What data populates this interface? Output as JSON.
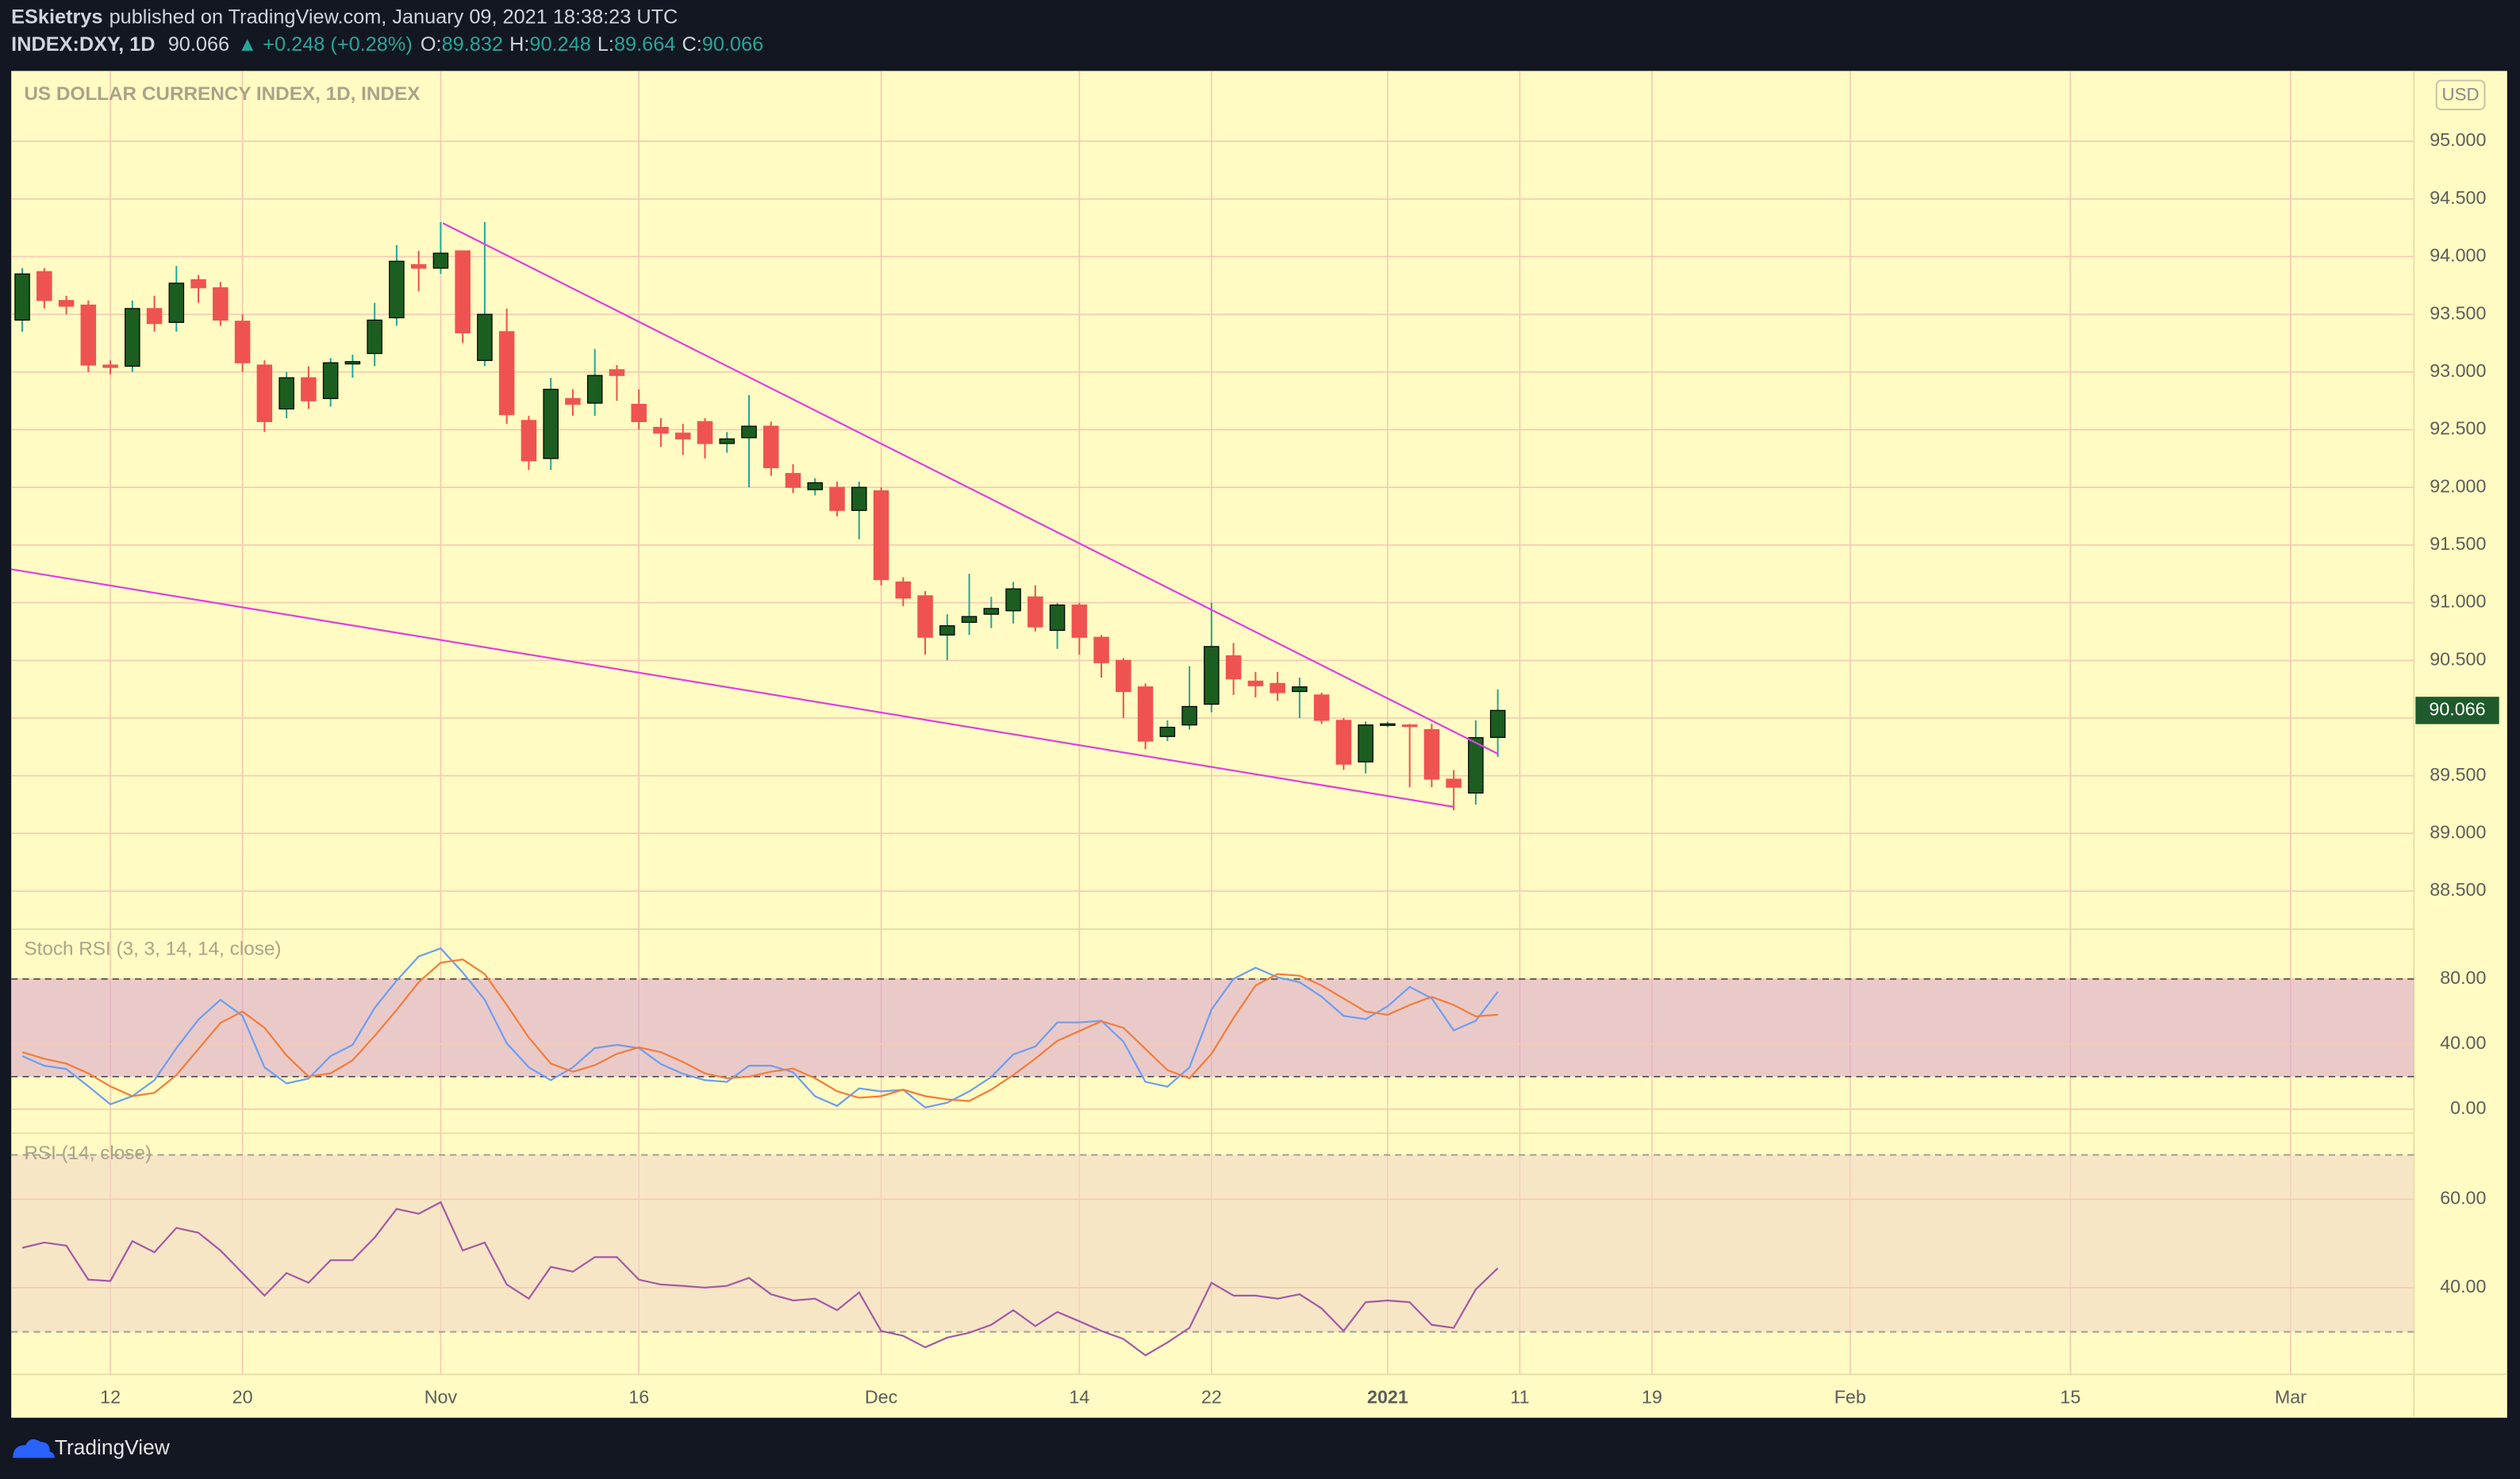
{
  "header": {
    "author": "ESkietrys",
    "published": "published on TradingView.com, January 09, 2021 18:38:23 UTC",
    "symbol": "INDEX:DXY, 1D",
    "price": "90.066",
    "change": "▲ +0.248 (+0.28%)",
    "ohlc": [
      {
        "label": "O:",
        "value": "89.832"
      },
      {
        "label": "H:",
        "value": "90.248"
      },
      {
        "label": "L:",
        "value": "89.664"
      },
      {
        "label": "C:",
        "value": "90.066"
      }
    ]
  },
  "footer": {
    "brand": "TradingView"
  },
  "chart_data": [
    {
      "type": "candlestick",
      "title": "US DOLLAR CURRENCY INDEX, 1D, INDEX",
      "currency": "USD",
      "grid": true,
      "up_color": "#1b5e20",
      "down_color": "#ef5350",
      "xlim": [
        -0.5,
        108.6
      ],
      "xticks": [
        {
          "value": 4,
          "label": "12"
        },
        {
          "value": 10,
          "label": "20"
        },
        {
          "value": 19,
          "label": "Nov"
        },
        {
          "value": 28,
          "label": "16"
        },
        {
          "value": 39,
          "label": "Dec"
        },
        {
          "value": 48,
          "label": "14"
        },
        {
          "value": 54,
          "label": "22"
        },
        {
          "value": 62,
          "label": "2021"
        },
        {
          "value": 68,
          "label": "11"
        },
        {
          "value": 74,
          "label": "19"
        },
        {
          "value": 83,
          "label": "Feb"
        },
        {
          "value": 93,
          "label": "15"
        },
        {
          "value": 103,
          "label": "Mar"
        }
      ],
      "ylim": [
        88.17,
        95.61
      ],
      "yticks": [
        {
          "value": 88.5,
          "label": "88.500"
        },
        {
          "value": 89,
          "label": "89.000"
        },
        {
          "value": 89.5,
          "label": "89.500"
        },
        {
          "value": 90,
          "label": "90.000"
        },
        {
          "value": 90.5,
          "label": "90.500"
        },
        {
          "value": 91,
          "label": "91.000"
        },
        {
          "value": 91.5,
          "label": "91.500"
        },
        {
          "value": 92,
          "label": "92.000"
        },
        {
          "value": 92.5,
          "label": "92.500"
        },
        {
          "value": 93,
          "label": "93.000"
        },
        {
          "value": 93.5,
          "label": "93.500"
        },
        {
          "value": 94,
          "label": "94.000"
        },
        {
          "value": 94.5,
          "label": "94.500"
        },
        {
          "value": 95,
          "label": "95.000"
        }
      ],
      "open": [
        93.45,
        93.87,
        93.62,
        93.58,
        93.06,
        93.05,
        93.55,
        93.43,
        93.8,
        93.73,
        93.44,
        93.06,
        92.68,
        92.95,
        92.77,
        93.07,
        93.16,
        93.47,
        93.93,
        93.9,
        94.05,
        93.1,
        93.35,
        92.58,
        92.25,
        92.77,
        92.73,
        93.02,
        92.72,
        92.52,
        92.47,
        92.57,
        92.38,
        92.43,
        92.53,
        92.12,
        91.98,
        92.0,
        91.8,
        91.97,
        91.18,
        91.06,
        90.72,
        90.83,
        90.9,
        90.93,
        91.05,
        90.76,
        90.98,
        90.7,
        90.5,
        90.27,
        89.84,
        89.94,
        90.12,
        90.54,
        90.32,
        90.3,
        90.23,
        90.2,
        89.98,
        89.62,
        89.94,
        89.94,
        89.9,
        89.47,
        89.35,
        89.832
      ],
      "high": [
        93.9,
        93.9,
        93.66,
        93.62,
        93.1,
        93.62,
        93.66,
        93.92,
        93.84,
        93.78,
        93.5,
        93.1,
        93.0,
        93.05,
        93.12,
        93.15,
        93.6,
        94.1,
        94.05,
        94.3,
        94.05,
        94.3,
        93.55,
        92.62,
        92.95,
        92.85,
        93.2,
        93.06,
        92.85,
        92.6,
        92.55,
        92.6,
        92.48,
        92.8,
        92.57,
        92.2,
        92.08,
        92.05,
        92.05,
        92.0,
        91.22,
        91.1,
        90.9,
        91.25,
        91.05,
        91.18,
        91.15,
        91.0,
        91.0,
        90.72,
        90.52,
        90.3,
        89.98,
        90.45,
        91.0,
        90.65,
        90.4,
        90.4,
        90.35,
        90.22,
        90.0,
        89.97,
        89.97,
        89.95,
        89.95,
        89.55,
        89.98,
        90.248
      ],
      "low": [
        93.35,
        93.55,
        93.5,
        93.0,
        92.98,
        93.0,
        93.35,
        93.35,
        93.6,
        93.4,
        93.0,
        92.48,
        92.6,
        92.68,
        92.7,
        92.95,
        93.05,
        93.4,
        93.7,
        93.85,
        93.25,
        93.05,
        92.55,
        92.15,
        92.15,
        92.62,
        92.62,
        92.75,
        92.5,
        92.35,
        92.28,
        92.25,
        92.3,
        92.0,
        92.1,
        91.95,
        91.93,
        91.75,
        91.55,
        91.15,
        90.97,
        90.55,
        90.5,
        90.72,
        90.78,
        90.82,
        90.75,
        90.6,
        90.55,
        90.35,
        90.0,
        89.73,
        89.8,
        89.9,
        90.05,
        90.2,
        90.18,
        90.15,
        90.0,
        89.95,
        89.55,
        89.52,
        89.92,
        89.4,
        89.4,
        89.2,
        89.25,
        89.664
      ],
      "close": [
        93.85,
        93.62,
        93.57,
        93.06,
        93.04,
        93.55,
        93.42,
        93.77,
        93.73,
        93.45,
        93.08,
        92.57,
        92.95,
        92.75,
        93.08,
        93.09,
        93.45,
        93.96,
        93.9,
        94.03,
        93.34,
        93.5,
        92.63,
        92.23,
        92.85,
        92.72,
        92.97,
        92.97,
        92.57,
        92.47,
        92.42,
        92.38,
        92.42,
        92.53,
        92.17,
        92.0,
        92.04,
        91.8,
        92.0,
        91.2,
        91.04,
        90.7,
        90.8,
        90.88,
        90.95,
        91.12,
        90.79,
        90.98,
        90.7,
        90.48,
        90.23,
        89.8,
        89.92,
        90.1,
        90.62,
        90.34,
        90.28,
        90.22,
        90.27,
        89.98,
        89.6,
        89.94,
        89.95,
        89.93,
        89.47,
        89.4,
        89.83,
        90.066
      ],
      "last_value": 90.066,
      "last_color": "#1e5a2b",
      "trendlines": [
        {
          "color": "#e040e0",
          "x": [
            19.1,
            67
          ],
          "y": [
            94.29,
            89.69
          ]
        },
        {
          "color": "#e040e0",
          "x": [
            -0.5,
            65
          ],
          "y": [
            91.29,
            89.23
          ]
        }
      ]
    },
    {
      "type": "line",
      "title": "Stoch RSI (3, 3, 14, 14, close)",
      "grid": true,
      "ylim": [
        -14.8,
        110.6
      ],
      "yticks": [
        {
          "value": 0,
          "label": "0.00"
        },
        {
          "value": 40,
          "label": "40.00"
        },
        {
          "value": 80,
          "label": "80.00"
        }
      ],
      "bands": [
        20,
        80
      ],
      "band_color": "#d9a3d0",
      "band_line_color": "#555",
      "series": [
        {
          "color": "#6d9ef0",
          "values": [
            32.6,
            26.7,
            24.7,
            14,
            3.0,
            8,
            17.8,
            37.5,
            55,
            67.2,
            57.3,
            25.7,
            15.8,
            18.8,
            32.6,
            39.5,
            62.2,
            79.0,
            93.8,
            98.8,
            84.0,
            67.2,
            40.5,
            25.7,
            17.8,
            25.7,
            37.5,
            39.5,
            37.5,
            27.7,
            21.7,
            17.8,
            16.8,
            26.7,
            26.7,
            22.7,
            7.9,
            2.0,
            12.8,
            10.9,
            11.9,
            1.0,
            4.0,
            10.9,
            19.8,
            33.6,
            38.5,
            53.3,
            53.3,
            54.3,
            41.5,
            16.8,
            13.8,
            25.7,
            61.2,
            80.0,
            86.9,
            81.0,
            78.0,
            69.1,
            57.3,
            55.3,
            63.2,
            75.1,
            68.1,
            48.4,
            54.3,
            72.1
          ]
        },
        {
          "color": "#f57c3a",
          "values": [
            35,
            31,
            28,
            22,
            14,
            8,
            10,
            21,
            37,
            53,
            60,
            50,
            33,
            20,
            22,
            30,
            45,
            61,
            78,
            90,
            92,
            83,
            64,
            44,
            28,
            23,
            27,
            34,
            38,
            35,
            29,
            22,
            19,
            20,
            23,
            25,
            19,
            11,
            7,
            8,
            12,
            8,
            6,
            5,
            12,
            21,
            31,
            42,
            48,
            54,
            50,
            37,
            24,
            19,
            34,
            56,
            76,
            83,
            82,
            76,
            68,
            60,
            58,
            64,
            69,
            64,
            57,
            58
          ]
        }
      ]
    },
    {
      "type": "line",
      "title": "RSI (14, close)",
      "grid": true,
      "ylim": [
        20.4,
        74.9
      ],
      "yticks": [
        {
          "value": 40,
          "label": "40.00"
        },
        {
          "value": 60,
          "label": "60.00"
        }
      ],
      "bands": [
        30,
        70
      ],
      "band_color": "#f0d6c8",
      "band_line_color": "#9a9a9a",
      "series": [
        {
          "color": "#a35aa8",
          "values": [
            49,
            50.2,
            49.5,
            41.8,
            41.5,
            50.5,
            48,
            53.5,
            52.4,
            48.4,
            43.3,
            38.2,
            43.3,
            41.1,
            46.2,
            46.2,
            51.3,
            57.8,
            56.7,
            59.3,
            48.4,
            50.2,
            40.7,
            37.5,
            44.7,
            43.6,
            46.9,
            46.9,
            41.8,
            40.7,
            40.4,
            40,
            40.4,
            42.2,
            38.5,
            37.1,
            37.5,
            34.9,
            38.9,
            30.2,
            29.1,
            26.5,
            28.7,
            29.8,
            31.6,
            34.9,
            31.3,
            34.5,
            32.4,
            30.2,
            28.4,
            24.7,
            27.6,
            30.9,
            41.1,
            38.2,
            38.2,
            37.5,
            38.5,
            35.3,
            30.2,
            36.7,
            37.1,
            36.7,
            31.6,
            30.9,
            39.6,
            44.4
          ]
        }
      ]
    }
  ]
}
